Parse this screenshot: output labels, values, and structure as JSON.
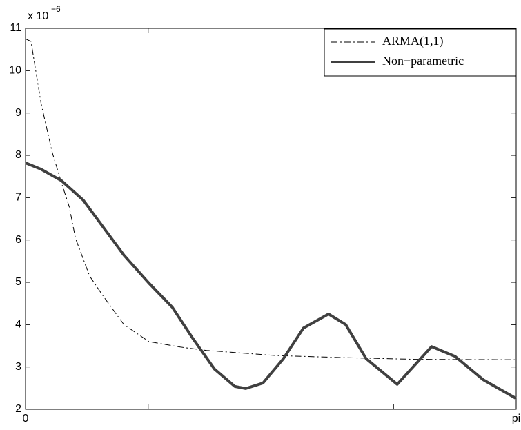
{
  "chart_data": {
    "type": "line",
    "y_multiplier": {
      "base": "x 10",
      "exponent": "−6"
    },
    "xlim": [
      0,
      3.14159
    ],
    "xticks": [
      0,
      {
        "value": 0.7854,
        "label": null
      },
      {
        "value": 1.5708,
        "label": null
      },
      {
        "value": 2.3562,
        "label": null
      },
      {
        "value": 3.14159,
        "label": "pi"
      }
    ],
    "ylim": [
      2,
      11
    ],
    "yticks": [
      2,
      3,
      4,
      5,
      6,
      7,
      8,
      9,
      10,
      11
    ],
    "legend": "upper right",
    "series": [
      {
        "name": "ARMA(1,1)",
        "color": "#000000",
        "style": "dash-dot",
        "width": 1,
        "x": [
          0,
          0.035,
          0.1,
          0.17,
          0.23,
          0.28,
          0.32,
          0.41,
          0.5,
          0.63,
          0.79,
          0.99,
          1.16,
          1.6,
          2.05,
          2.49,
          3.14
        ],
        "values": [
          10.75,
          10.69,
          9.22,
          8.08,
          7.35,
          6.78,
          6.04,
          5.15,
          4.66,
          4.0,
          3.6,
          3.47,
          3.39,
          3.27,
          3.22,
          3.18,
          3.17
        ]
      },
      {
        "name": "Non−parametric",
        "color": "#404040",
        "style": "solid",
        "width": 4,
        "x": [
          0,
          0.1,
          0.23,
          0.37,
          0.5,
          0.63,
          0.79,
          0.94,
          1.07,
          1.21,
          1.34,
          1.41,
          1.52,
          1.65,
          1.78,
          1.94,
          2.05,
          2.18,
          2.38,
          2.6,
          2.75,
          2.93,
          3.14
        ],
        "values": [
          7.82,
          7.67,
          7.4,
          6.94,
          6.29,
          5.64,
          4.98,
          4.41,
          3.68,
          2.95,
          2.54,
          2.49,
          2.62,
          3.19,
          3.92,
          4.25,
          4.0,
          3.2,
          2.59,
          3.48,
          3.25,
          2.7,
          2.26
        ]
      }
    ]
  }
}
